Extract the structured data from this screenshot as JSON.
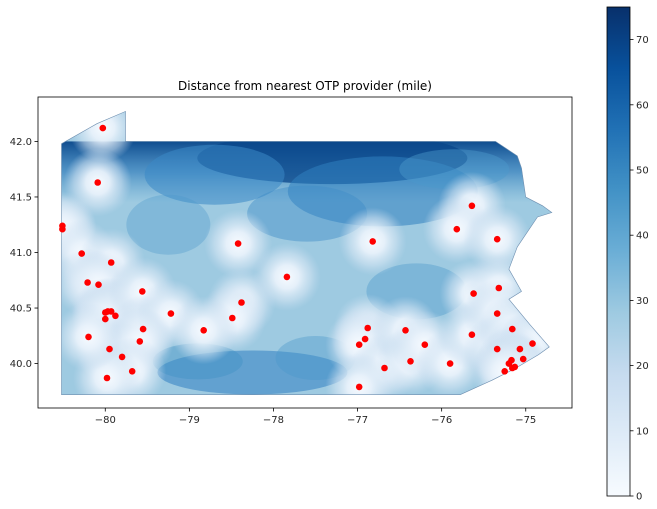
{
  "chart_data": {
    "type": "choropleth-map",
    "title": "Distance from nearest OTP provider (mile)",
    "xlabel": "",
    "ylabel": "",
    "xlim": [
      -80.8,
      -74.45
    ],
    "ylim": [
      39.6,
      42.4
    ],
    "x_ticks": [
      {
        "value": -80,
        "label": "−80"
      },
      {
        "value": -79,
        "label": "−79"
      },
      {
        "value": -78,
        "label": "−78"
      },
      {
        "value": -77,
        "label": "−77"
      },
      {
        "value": -76,
        "label": "−76"
      },
      {
        "value": -75,
        "label": "−75"
      }
    ],
    "y_ticks": [
      {
        "value": 40.0,
        "label": "40.0"
      },
      {
        "value": 40.5,
        "label": "40.5"
      },
      {
        "value": 41.0,
        "label": "41.0"
      },
      {
        "value": 41.5,
        "label": "41.5"
      },
      {
        "value": 42.0,
        "label": "42.0"
      }
    ],
    "colorbar": {
      "colormap": "Blues",
      "range": [
        0,
        75
      ],
      "ticks": [
        {
          "value": 0,
          "label": "0"
        },
        {
          "value": 10,
          "label": "10"
        },
        {
          "value": 20,
          "label": "20"
        },
        {
          "value": 30,
          "label": "30"
        },
        {
          "value": 40,
          "label": "40"
        },
        {
          "value": 50,
          "label": "50"
        },
        {
          "value": 60,
          "label": "60"
        },
        {
          "value": 70,
          "label": "70"
        }
      ]
    },
    "marker_color": "#ff0000",
    "region_outline": [
      [
        -80.52,
        39.72
      ],
      [
        -80.52,
        41.98
      ],
      [
        -80.1,
        42.16
      ],
      [
        -79.76,
        42.27
      ],
      [
        -79.76,
        42.0
      ],
      [
        -75.36,
        42.0
      ],
      [
        -75.1,
        41.87
      ],
      [
        -75.05,
        41.76
      ],
      [
        -75.0,
        41.5
      ],
      [
        -74.8,
        41.42
      ],
      [
        -74.69,
        41.36
      ],
      [
        -74.86,
        41.32
      ],
      [
        -75.1,
        41.05
      ],
      [
        -75.2,
        40.85
      ],
      [
        -75.05,
        40.65
      ],
      [
        -75.2,
        40.58
      ],
      [
        -74.95,
        40.35
      ],
      [
        -74.72,
        40.15
      ],
      [
        -74.85,
        40.08
      ],
      [
        -75.14,
        39.95
      ],
      [
        -75.4,
        39.85
      ],
      [
        -75.78,
        39.72
      ]
    ],
    "provider_points": [
      [
        -80.03,
        42.12
      ],
      [
        -80.09,
        41.63
      ],
      [
        -80.51,
        41.24
      ],
      [
        -80.51,
        41.21
      ],
      [
        -80.28,
        40.99
      ],
      [
        -79.93,
        40.91
      ],
      [
        -80.21,
        40.73
      ],
      [
        -80.08,
        40.71
      ],
      [
        -80.0,
        40.46
      ],
      [
        -79.97,
        40.47
      ],
      [
        -79.93,
        40.47
      ],
      [
        -79.88,
        40.43
      ],
      [
        -80.0,
        40.4
      ],
      [
        -79.56,
        40.65
      ],
      [
        -79.55,
        40.31
      ],
      [
        -79.22,
        40.45
      ],
      [
        -79.95,
        40.13
      ],
      [
        -79.8,
        40.06
      ],
      [
        -79.59,
        40.2
      ],
      [
        -79.68,
        39.93
      ],
      [
        -79.98,
        39.87
      ],
      [
        -80.2,
        40.24
      ],
      [
        -78.42,
        41.08
      ],
      [
        -78.38,
        40.55
      ],
      [
        -78.49,
        40.41
      ],
      [
        -78.83,
        40.3
      ],
      [
        -77.84,
        40.78
      ],
      [
        -76.82,
        41.1
      ],
      [
        -76.88,
        40.32
      ],
      [
        -76.91,
        40.22
      ],
      [
        -76.98,
        40.17
      ],
      [
        -76.68,
        39.96
      ],
      [
        -76.98,
        39.79
      ],
      [
        -76.43,
        40.3
      ],
      [
        -76.37,
        40.02
      ],
      [
        -76.2,
        40.17
      ],
      [
        -75.9,
        40.0
      ],
      [
        -75.62,
        40.63
      ],
      [
        -75.64,
        40.26
      ],
      [
        -75.64,
        41.42
      ],
      [
        -75.82,
        41.21
      ],
      [
        -75.34,
        41.12
      ],
      [
        -75.32,
        40.68
      ],
      [
        -75.34,
        40.45
      ],
      [
        -75.34,
        40.13
      ],
      [
        -75.16,
        40.31
      ],
      [
        -75.07,
        40.13
      ],
      [
        -75.03,
        40.04
      ],
      [
        -74.92,
        40.18
      ],
      [
        -75.17,
        40.03
      ],
      [
        -75.2,
        40.0
      ],
      [
        -75.13,
        39.97
      ],
      [
        -75.16,
        39.96
      ],
      [
        -75.25,
        39.93
      ]
    ]
  }
}
